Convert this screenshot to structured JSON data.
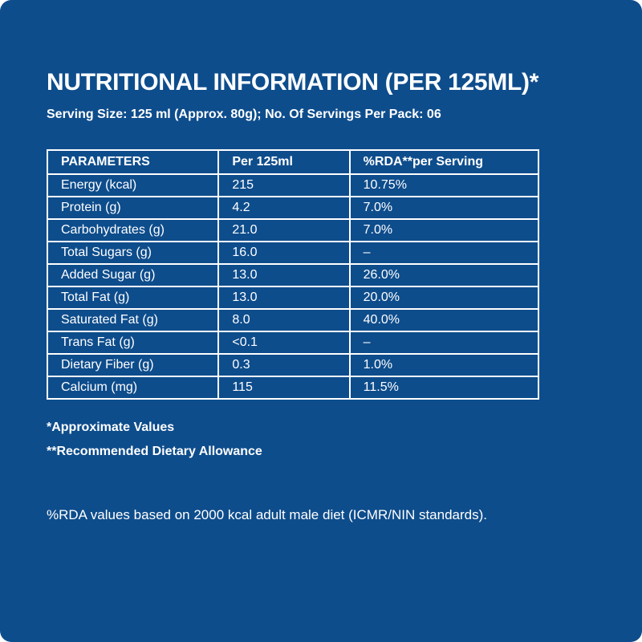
{
  "header": {
    "title": "NUTRITIONAL INFORMATION (PER 125ML)*",
    "subtitle": "Serving Size: 125 ml (Approx. 80g); No. Of Servings Per Pack: 06"
  },
  "table": {
    "columns": [
      "PARAMETERS",
      "Per 125ml",
      "%RDA**per Serving"
    ],
    "rows": [
      [
        "Energy (kcal)",
        "215",
        "10.75%"
      ],
      [
        "Protein (g)",
        "4.2",
        "7.0%"
      ],
      [
        "Carbohydrates (g)",
        "21.0",
        "7.0%"
      ],
      [
        "Total Sugars (g)",
        "16.0",
        "–"
      ],
      [
        "Added Sugar (g)",
        "13.0",
        "26.0%"
      ],
      [
        "Total Fat (g)",
        "13.0",
        "20.0%"
      ],
      [
        "Saturated Fat (g)",
        "8.0",
        "40.0%"
      ],
      [
        "Trans Fat (g)",
        "<0.1",
        "–"
      ],
      [
        "Dietary Fiber (g)",
        "0.3",
        "1.0%"
      ],
      [
        "Calcium (mg)",
        "115",
        "11.5%"
      ]
    ]
  },
  "footnotes": [
    "*Approximate Values",
    "**Recommended Dietary Allowance"
  ],
  "note": "%RDA values based on 2000 kcal adult male diet (ICMR/NIN standards)."
}
